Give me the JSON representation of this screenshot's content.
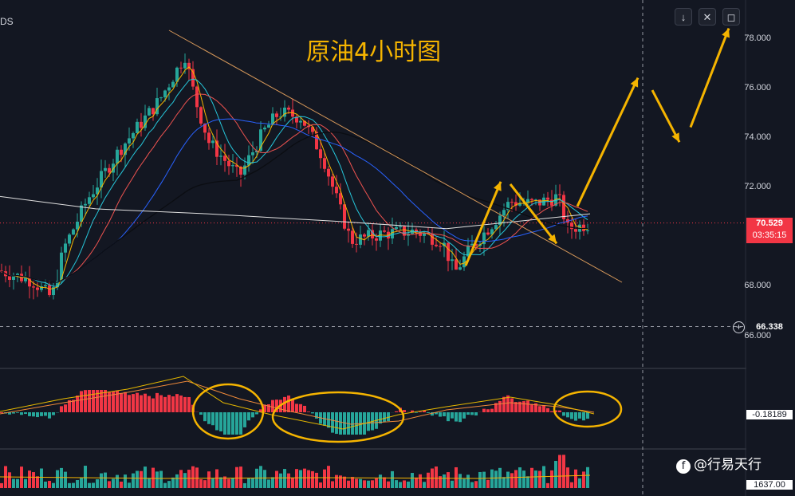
{
  "symbol_fragment": "DS",
  "title": "原油4小时图",
  "toolbar": {
    "down_icon": "↓",
    "collapse_icon": "✕",
    "maximize_icon": "◻"
  },
  "y_axis": {
    "ticks": [
      "78.000",
      "76.000",
      "74.000",
      "72.000",
      "68.000",
      "66.000"
    ]
  },
  "price_tag": {
    "value": "70.529",
    "countdown": "03:35:15",
    "color": "#f23645"
  },
  "crosshair_tag": {
    "value": "66.338"
  },
  "macd_tag": {
    "value": "-0.18189"
  },
  "volume_tag": {
    "value": "1637.00"
  },
  "watermark": "@行易天行",
  "colors": {
    "up": "#26a69a",
    "down": "#f23645",
    "annotation": "#f5b400",
    "ma_fast": "#f5b400",
    "ma_cyan": "#26c6da",
    "ma_red": "#ef5350",
    "ma_blue": "#2962ff",
    "ma_black": "#0b0d12",
    "ma_white": "#e0e0e0"
  },
  "chart_data": {
    "type": "candlestick",
    "ylim": [
      65.5,
      78.5
    ],
    "annotation_arrows": [
      {
        "from": [
          70.0,
          68.6
        ],
        "to": [
          72.3
        ]
      },
      {
        "from": [
          72.0
        ],
        "to": [
          69.6
        ]
      },
      {
        "from": [
          71.4
        ],
        "to": [
          76.3
        ]
      },
      {
        "from": [
          75.8
        ],
        "to": [
          73.8
        ]
      },
      {
        "from": [
          74.3
        ],
        "to": [
          78.3
        ]
      }
    ],
    "trendline": {
      "start": 78.0,
      "end": 68.0
    },
    "crosshair_price": 66.338,
    "last_price": 70.529
  }
}
